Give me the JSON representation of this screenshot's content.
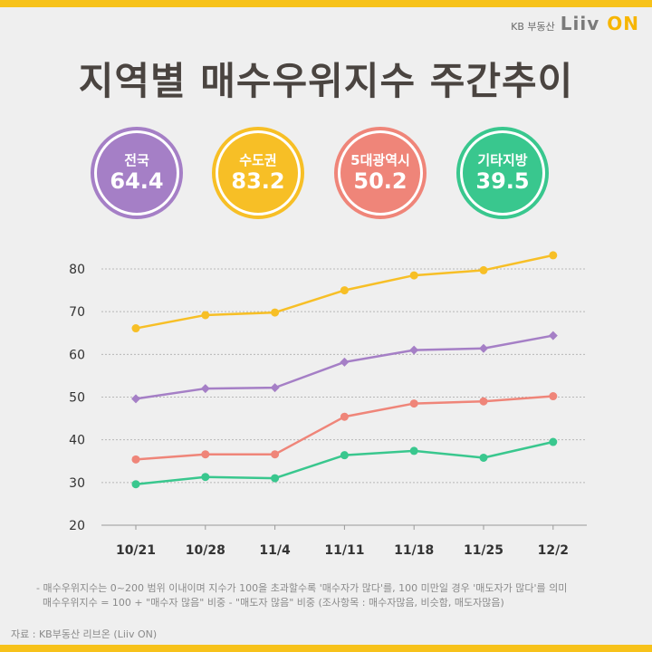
{
  "brand": {
    "kb": "KB 부동산",
    "liiv": "Liiv",
    "on": "ON"
  },
  "title": "지역별 매수우위지수 주간추이",
  "badges": [
    {
      "name": "전국",
      "value": "64.4",
      "color": "#a57fc6"
    },
    {
      "name": "수도권",
      "value": "83.2",
      "color": "#f7bf26"
    },
    {
      "name": "5대광역시",
      "value": "50.2",
      "color": "#ef8579"
    },
    {
      "name": "기타지방",
      "value": "39.5",
      "color": "#39c78e"
    }
  ],
  "chart_data": {
    "type": "line",
    "x": [
      "10/21",
      "10/28",
      "11/4",
      "11/11",
      "11/18",
      "11/25",
      "12/2"
    ],
    "yticks": [
      20,
      30,
      40,
      50,
      60,
      70,
      80
    ],
    "ylim": [
      20,
      85
    ],
    "grid": true,
    "series": [
      {
        "name": "전국",
        "color": "#a57fc6",
        "values": [
          49.6,
          52.0,
          52.2,
          58.2,
          61.0,
          61.4,
          64.4
        ]
      },
      {
        "name": "수도권",
        "color": "#f7bf26",
        "values": [
          66.1,
          69.2,
          69.8,
          75.0,
          78.5,
          79.7,
          83.2
        ]
      },
      {
        "name": "5대광역시",
        "color": "#ef8579",
        "values": [
          35.4,
          36.6,
          36.6,
          45.4,
          48.5,
          49.0,
          50.2
        ]
      },
      {
        "name": "기타지방",
        "color": "#39c78e",
        "values": [
          29.6,
          31.3,
          31.0,
          36.4,
          37.4,
          35.8,
          39.5
        ]
      }
    ]
  },
  "notes": [
    "- 매수우위지수는 0~200 범위 이내이며 지수가 100을 초과할수록 '매수자가 많다'를, 100 미만일 경우 '매도자가 많다'를 의미",
    "  매수우위지수 = 100 + \"매수자 많음\" 비중 - \"매도자 많음\" 비중 (조사항목 : 매수자많음, 비슷함, 매도자많음)"
  ],
  "source": "자료 : KB부동산 리브온 (Liiv ON)"
}
